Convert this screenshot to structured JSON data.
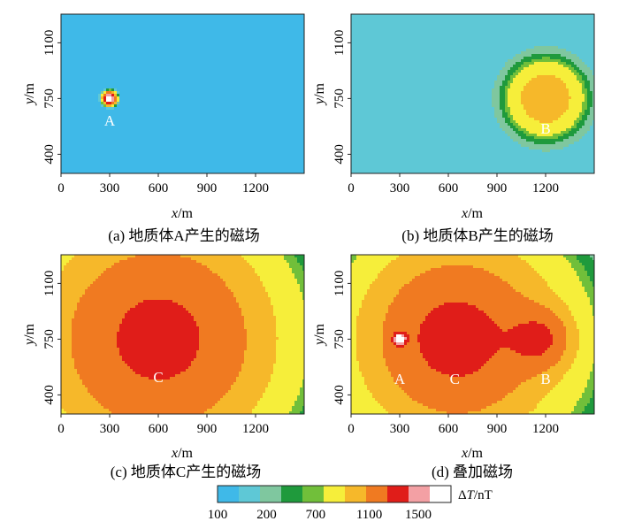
{
  "panels": [
    {
      "id": "a",
      "caption": "(a) 地质体A产生的磁场",
      "xlabel_var": "x",
      "xlabel_unit": "/m",
      "ylabel_var": "y",
      "ylabel_unit": "/m",
      "x_ticks": [
        "0",
        "300",
        "600",
        "900",
        "1200"
      ],
      "y_ticks": [
        "400",
        "750",
        "1100"
      ],
      "point_labels": [
        {
          "text": "A",
          "x": 300,
          "y": 580
        }
      ],
      "sources": [
        {
          "name": "A",
          "x": 300,
          "y": 750,
          "peak": 2000,
          "width": 22
        }
      ],
      "background": 100
    },
    {
      "id": "b",
      "caption": "(b) 地质体B产生的磁场",
      "xlabel_var": "x",
      "xlabel_unit": "/m",
      "ylabel_var": "y",
      "ylabel_unit": "/m",
      "x_ticks": [
        "0",
        "300",
        "600",
        "900",
        "1200"
      ],
      "y_ticks": [
        "400",
        "750",
        "1100"
      ],
      "point_labels": [
        {
          "text": "B",
          "x": 1200,
          "y": 530
        }
      ],
      "sources": [
        {
          "name": "B",
          "x": 1200,
          "y": 750,
          "peak": 320,
          "width": 140
        }
      ],
      "background": 120
    },
    {
      "id": "c",
      "caption": "(c) 地质体C产生的磁场",
      "xlabel_var": "x",
      "xlabel_unit": "/m",
      "ylabel_var": "y",
      "ylabel_unit": "/m",
      "x_ticks": [
        "0",
        "300",
        "600",
        "900",
        "1200"
      ],
      "y_ticks": [
        "400",
        "750",
        "1100"
      ],
      "point_labels": [
        {
          "text": "C",
          "x": 600,
          "y": 480
        }
      ],
      "sources": [
        {
          "name": "C",
          "x": 600,
          "y": 750,
          "peak": 680,
          "width": 450
        }
      ],
      "background": 120
    },
    {
      "id": "d",
      "caption": "(d) 叠加磁场",
      "xlabel_var": "x",
      "xlabel_unit": "/m",
      "ylabel_var": "y",
      "ylabel_unit": "/m",
      "x_ticks": [
        "0",
        "300",
        "600",
        "900",
        "1200"
      ],
      "y_ticks": [
        "400",
        "750",
        "1100"
      ],
      "point_labels": [
        {
          "text": "A",
          "x": 300,
          "y": 470
        },
        {
          "text": "C",
          "x": 640,
          "y": 470
        },
        {
          "text": "B",
          "x": 1200,
          "y": 470
        }
      ],
      "sources": [
        {
          "name": "A",
          "x": 300,
          "y": 750,
          "peak": 1900,
          "width": 22
        },
        {
          "name": "B",
          "x": 1170,
          "y": 750,
          "peak": 420,
          "width": 120
        },
        {
          "name": "C",
          "x": 640,
          "y": 750,
          "peak": 480,
          "width": 330
        },
        {
          "name": "C2",
          "x": 700,
          "y": 750,
          "peak": 260,
          "width": 560
        }
      ],
      "background": 90
    }
  ],
  "chart_data": {
    "type": "heatmap",
    "x_range": [
      0,
      1500
    ],
    "y_range": [
      280,
      1280
    ],
    "colorbar": {
      "label_text": "ΔT/nT",
      "label_var": "T",
      "ticks": [
        "100",
        "200",
        "700",
        "1100",
        "1500"
      ],
      "tick_values": [
        100,
        200,
        700,
        1100,
        1500
      ],
      "stops": [
        {
          "value": 100,
          "color": "#3fb9e8"
        },
        {
          "value": 120,
          "color": "#5ec8d6"
        },
        {
          "value": 140,
          "color": "#7fc79f"
        },
        {
          "value": 160,
          "color": "#1f9a3c"
        },
        {
          "value": 180,
          "color": "#71bf3a"
        },
        {
          "value": 200,
          "color": "#f6ee3a"
        },
        {
          "value": 300,
          "color": "#f6b82a"
        },
        {
          "value": 450,
          "color": "#f07a21"
        },
        {
          "value": 700,
          "color": "#e01d19"
        },
        {
          "value": 1100,
          "color": "#f3a0a4"
        },
        {
          "value": 1500,
          "color": "#ffffff"
        }
      ]
    }
  }
}
